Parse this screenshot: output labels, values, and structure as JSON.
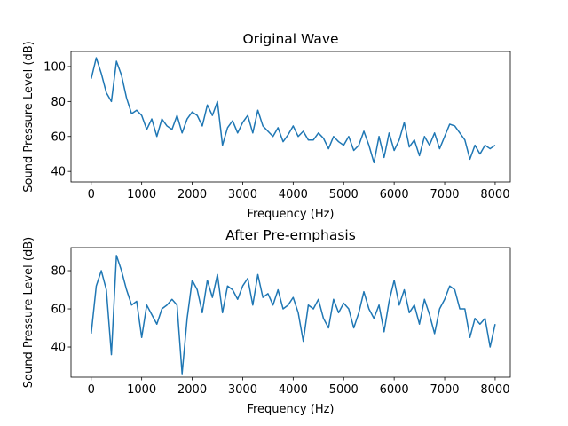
{
  "chart_data": [
    {
      "type": "line",
      "title": "Original Wave",
      "x_label": "Frequency (Hz)",
      "y_label": "Sound Pressure Level (dB)",
      "x": [
        0,
        100,
        200,
        300,
        400,
        500,
        600,
        700,
        800,
        900,
        1000,
        1100,
        1200,
        1300,
        1400,
        1500,
        1600,
        1700,
        1800,
        1900,
        2000,
        2100,
        2200,
        2300,
        2400,
        2500,
        2600,
        2700,
        2800,
        2900,
        3000,
        3100,
        3200,
        3300,
        3400,
        3500,
        3600,
        3700,
        3800,
        3900,
        4000,
        4100,
        4200,
        4300,
        4400,
        4500,
        4600,
        4700,
        4800,
        4900,
        5000,
        5100,
        5200,
        5300,
        5400,
        5500,
        5600,
        5700,
        5800,
        5900,
        6000,
        6100,
        6200,
        6300,
        6400,
        6500,
        6600,
        6700,
        6800,
        6900,
        7000,
        7100,
        7200,
        7300,
        7400,
        7500,
        7600,
        7700,
        7800,
        7900,
        8000
      ],
      "series": [
        {
          "color": "#1f77b4",
          "values": [
            93,
            105,
            96,
            85,
            80,
            103,
            95,
            82,
            73,
            75,
            72,
            64,
            70,
            60,
            70,
            66,
            64,
            72,
            62,
            70,
            74,
            72,
            66,
            78,
            72,
            80,
            55,
            65,
            69,
            62,
            68,
            72,
            62,
            75,
            66,
            63,
            60,
            65,
            57,
            61,
            66,
            60,
            63,
            58,
            58,
            62,
            59,
            53,
            60,
            57,
            55,
            60,
            52,
            55,
            63,
            55,
            45,
            60,
            48,
            62,
            52,
            58,
            68,
            54,
            58,
            49,
            60,
            55,
            62,
            53,
            60,
            67,
            66,
            62,
            58,
            47,
            55,
            50,
            55,
            53,
            55
          ]
        }
      ],
      "xlim": [
        -400,
        8300
      ],
      "ylim": [
        34,
        108.6
      ],
      "xticks": [
        0,
        1000,
        2000,
        3000,
        4000,
        5000,
        6000,
        7000,
        8000
      ],
      "yticks": [
        40,
        60,
        80,
        100
      ]
    },
    {
      "type": "line",
      "title": "After Pre-emphasis",
      "x_label": "Frequency (Hz)",
      "y_label": "Sound Pressure Level (dB)",
      "x": [
        0,
        100,
        200,
        300,
        400,
        500,
        600,
        700,
        800,
        900,
        1000,
        1100,
        1200,
        1300,
        1400,
        1500,
        1600,
        1700,
        1800,
        1900,
        2000,
        2100,
        2200,
        2300,
        2400,
        2500,
        2600,
        2700,
        2800,
        2900,
        3000,
        3100,
        3200,
        3300,
        3400,
        3500,
        3600,
        3700,
        3800,
        3900,
        4000,
        4100,
        4200,
        4300,
        4400,
        4500,
        4600,
        4700,
        4800,
        4900,
        5000,
        5100,
        5200,
        5300,
        5400,
        5500,
        5600,
        5700,
        5800,
        5900,
        6000,
        6100,
        6200,
        6300,
        6400,
        6500,
        6600,
        6700,
        6800,
        6900,
        7000,
        7100,
        7200,
        7300,
        7400,
        7500,
        7600,
        7700,
        7800,
        7900,
        8000
      ],
      "series": [
        {
          "color": "#1f77b4",
          "values": [
            47,
            72,
            80,
            70,
            36,
            88,
            80,
            70,
            62,
            64,
            45,
            62,
            57,
            52,
            60,
            62,
            65,
            62,
            26,
            55,
            75,
            70,
            58,
            75,
            66,
            78,
            58,
            72,
            70,
            65,
            72,
            76,
            62,
            78,
            66,
            68,
            62,
            70,
            60,
            62,
            66,
            58,
            43,
            62,
            60,
            65,
            55,
            50,
            65,
            58,
            63,
            60,
            50,
            58,
            69,
            60,
            55,
            62,
            48,
            64,
            75,
            62,
            70,
            58,
            62,
            52,
            65,
            57,
            47,
            60,
            65,
            72,
            70,
            60,
            60,
            45,
            55,
            52,
            55,
            40,
            52
          ]
        }
      ],
      "xlim": [
        -400,
        8300
      ],
      "ylim": [
        24.2,
        92.1
      ],
      "xticks": [
        0,
        1000,
        2000,
        3000,
        4000,
        5000,
        6000,
        7000,
        8000
      ],
      "yticks": [
        40,
        60,
        80
      ]
    }
  ]
}
